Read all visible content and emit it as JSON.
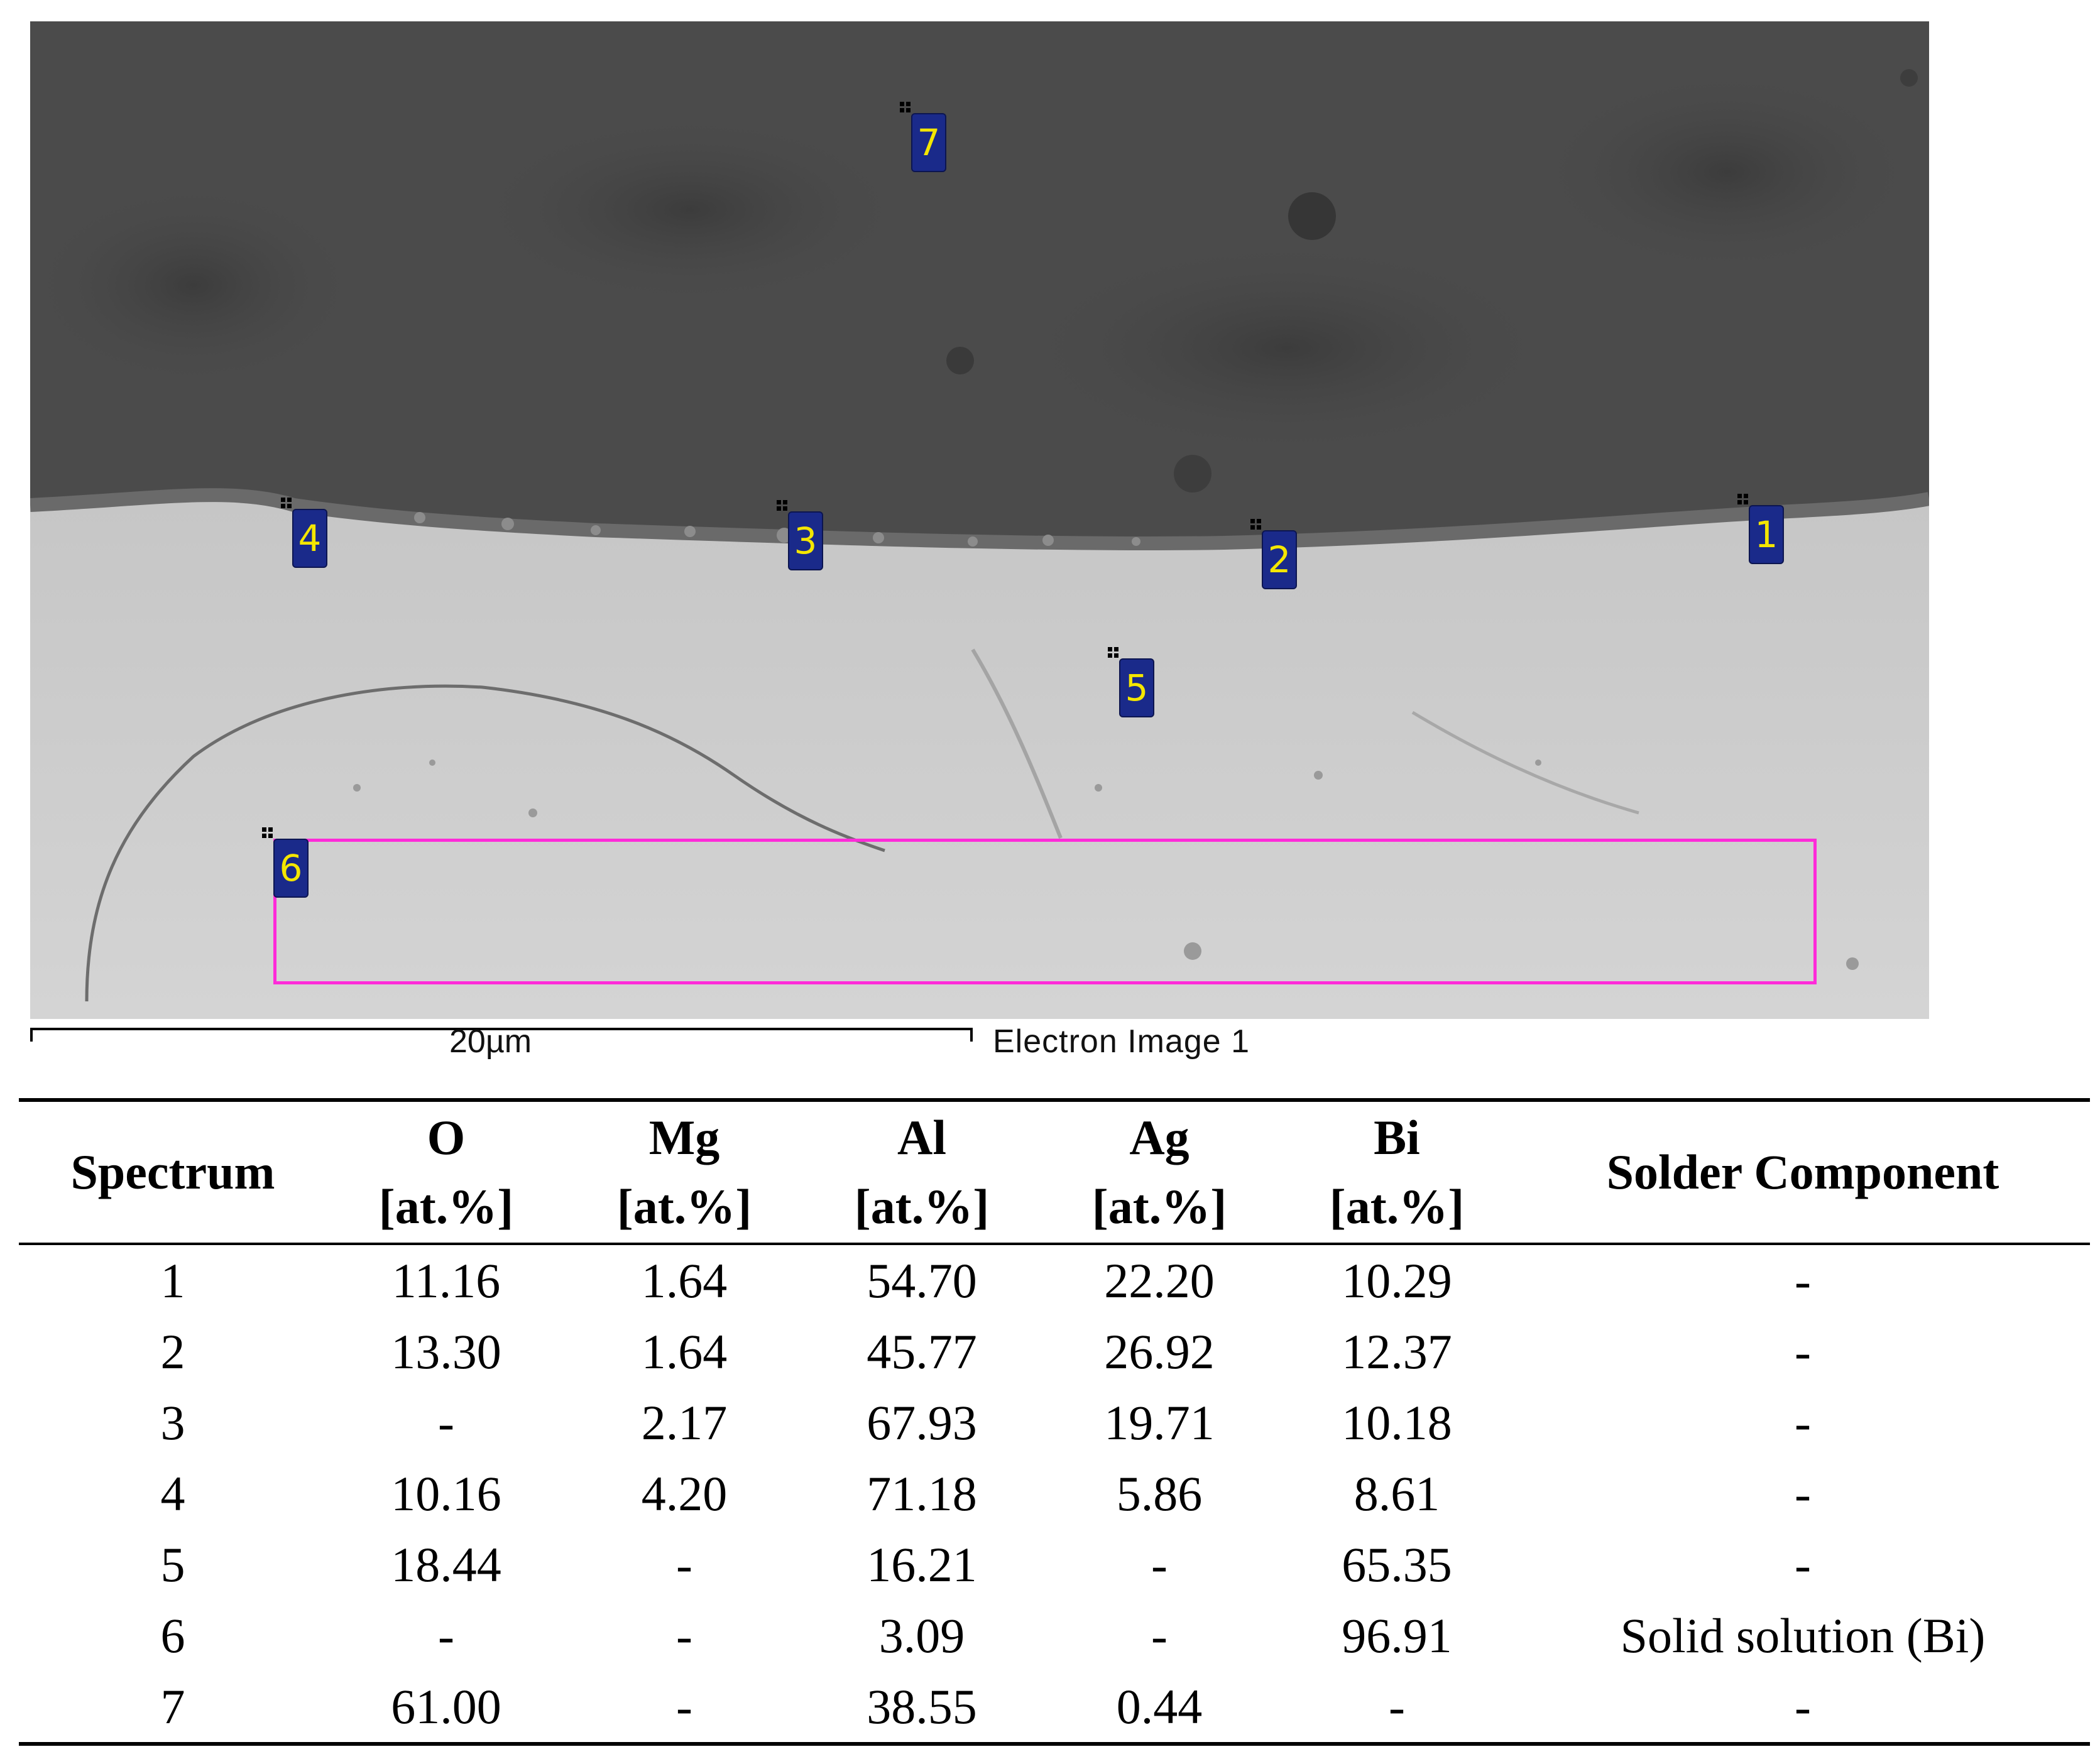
{
  "image": {
    "scale_bar_label": "20µm",
    "caption": "Electron Image 1",
    "spectrum_markers": [
      "1",
      "2",
      "3",
      "4",
      "5",
      "6",
      "7"
    ],
    "roi_color": "#ff2bd9",
    "marker_bg": "#1a2a8a",
    "marker_text": "#f4e600"
  },
  "table": {
    "headers": [
      {
        "line1": "Spectrum",
        "line2": ""
      },
      {
        "line1": "O",
        "line2": "[at.%]"
      },
      {
        "line1": "Mg",
        "line2": "[at.%]"
      },
      {
        "line1": "Al",
        "line2": "[at.%]"
      },
      {
        "line1": "Ag",
        "line2": "[at.%]"
      },
      {
        "line1": "Bi",
        "line2": "[at.%]"
      },
      {
        "line1": "Solder Component",
        "line2": ""
      }
    ],
    "rows": [
      [
        "1",
        "11.16",
        "1.64",
        "54.70",
        "22.20",
        "10.29",
        "-"
      ],
      [
        "2",
        "13.30",
        "1.64",
        "45.77",
        "26.92",
        "12.37",
        "-"
      ],
      [
        "3",
        "-",
        "2.17",
        "67.93",
        "19.71",
        "10.18",
        "-"
      ],
      [
        "4",
        "10.16",
        "4.20",
        "71.18",
        "5.86",
        "8.61",
        "-"
      ],
      [
        "5",
        "18.44",
        "-",
        "16.21",
        "-",
        "65.35",
        "-"
      ],
      [
        "6",
        "-",
        "-",
        "3.09",
        "-",
        "96.91",
        "Solid solution (Bi)"
      ],
      [
        "7",
        "61.00",
        "-",
        "38.55",
        "0.44",
        "-",
        "-"
      ]
    ]
  }
}
